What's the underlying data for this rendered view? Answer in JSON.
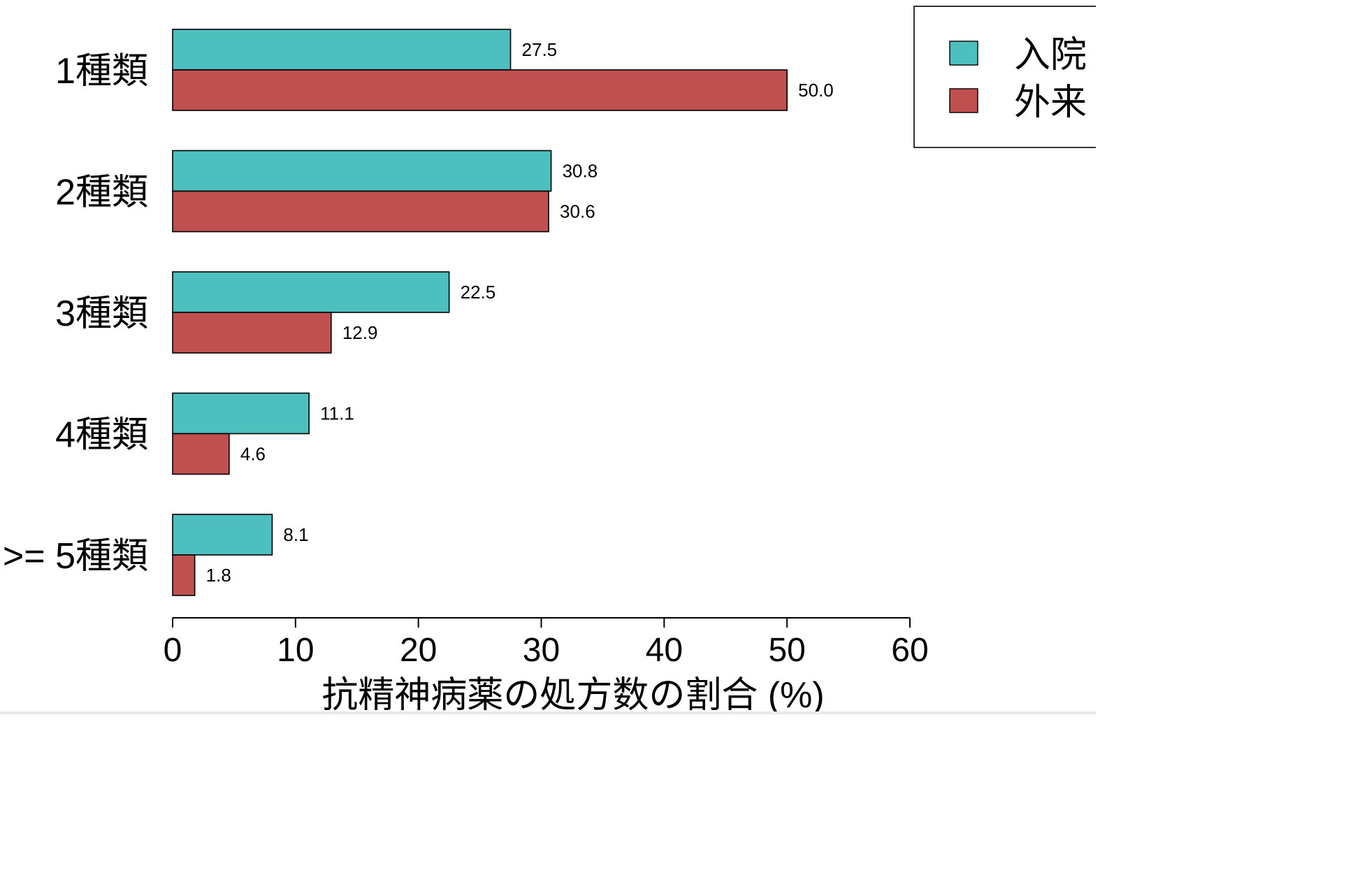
{
  "chart_data": {
    "type": "bar",
    "orientation": "horizontal",
    "categories": [
      "1種類",
      "2種類",
      "3種類",
      "4種類",
      ">= 5種類"
    ],
    "series": [
      {
        "name": "入院",
        "color": "#4EBFBF",
        "values": [
          27.5,
          30.8,
          22.5,
          11.1,
          8.1
        ],
        "labels": [
          "27.5",
          "30.8",
          "22.5",
          "11.1",
          "8.1"
        ]
      },
      {
        "name": "外来",
        "color": "#C04F4F",
        "values": [
          50.0,
          30.6,
          12.9,
          4.6,
          1.8
        ],
        "labels": [
          "50.0",
          "30.6",
          "12.9",
          "4.6",
          "1.8"
        ]
      }
    ],
    "xlabel": "抗精神病薬の処方数の割合 (%)",
    "ylabel": "",
    "xlim": [
      0,
      60
    ],
    "xticks": [
      "0",
      "10",
      "20",
      "30",
      "40",
      "50",
      "60"
    ],
    "legend_position": "top-right",
    "grid": false
  }
}
